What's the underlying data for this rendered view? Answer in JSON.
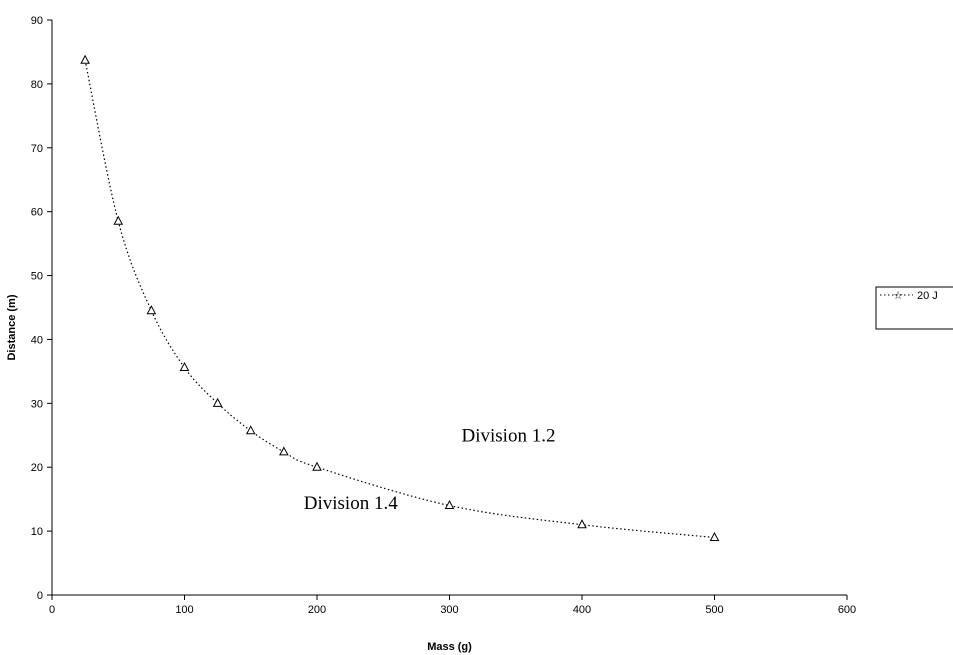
{
  "chart_data": {
    "type": "line",
    "title": "",
    "xlabel": "Mass (g)",
    "ylabel": "Distance (m)",
    "xlim": [
      0,
      600
    ],
    "ylim": [
      0,
      90
    ],
    "x_ticks": [
      0,
      100,
      200,
      300,
      400,
      500,
      600
    ],
    "y_ticks": [
      0,
      10,
      20,
      30,
      40,
      50,
      60,
      70,
      80,
      90
    ],
    "grid": false,
    "legend_position": "right",
    "series": [
      {
        "name": "20 J",
        "marker": "triangle",
        "line_style": "dotted",
        "color": "#000000",
        "x": [
          25,
          50,
          75,
          100,
          125,
          150,
          175,
          200,
          300,
          400,
          500
        ],
        "y": [
          83.7,
          58.5,
          44.5,
          35.6,
          30.0,
          25.7,
          22.4,
          20.0,
          14.0,
          11.0,
          9.0
        ]
      }
    ],
    "annotations": [
      {
        "text": "Division 1.2",
        "x": 300,
        "y": 24
      },
      {
        "text": "Division 1.4",
        "x": 190,
        "y": 13.5
      }
    ]
  }
}
